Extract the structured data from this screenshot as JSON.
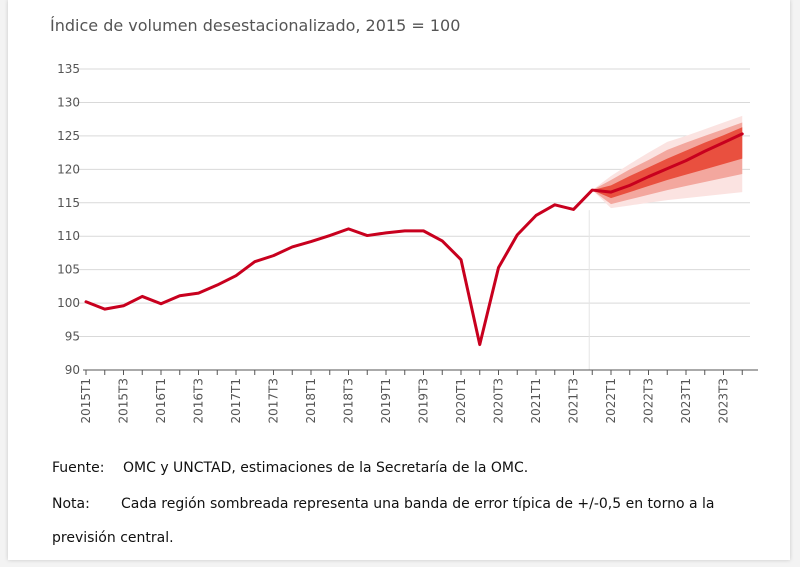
{
  "chart_data": {
    "type": "line",
    "title": "Índice de volumen desestacionalizado, 2015 = 100",
    "ylim": [
      90,
      135
    ],
    "yticks": [
      90,
      95,
      100,
      105,
      110,
      115,
      120,
      125,
      130,
      135
    ],
    "x": [
      "2015T1",
      "2015T2",
      "2015T3",
      "2015T4",
      "2016T1",
      "2016T2",
      "2016T3",
      "2016T4",
      "2017T1",
      "2017T2",
      "2017T3",
      "2017T4",
      "2018T1",
      "2018T2",
      "2018T3",
      "2018T4",
      "2019T1",
      "2019T2",
      "2019T3",
      "2019T4",
      "2020T1",
      "2020T2",
      "2020T3",
      "2020T4",
      "2021T1",
      "2021T2",
      "2021T3",
      "2021T4",
      "2022T1",
      "2022T2",
      "2022T3",
      "2022T4",
      "2023T1",
      "2023T2",
      "2023T3",
      "2023T4"
    ],
    "tick_labels": [
      "2015T1",
      "2015T3",
      "2016T1",
      "2016T3",
      "2017T1",
      "2017T3",
      "2018T1",
      "2018T3",
      "2019T1",
      "2019T3",
      "2020T1",
      "2020T3",
      "2021T1",
      "2021T3",
      "2022T1",
      "2022T3",
      "2023T1",
      "2023T3"
    ],
    "series": [
      {
        "values": [
          100.2,
          99.1,
          99.6,
          101.0,
          99.9,
          101.1,
          101.5,
          102.7,
          104.1,
          106.2,
          107.1,
          108.4,
          109.2,
          110.1,
          111.1,
          110.1,
          110.5,
          110.8,
          110.8,
          109.3,
          106.5,
          93.8,
          105.3,
          110.2,
          113.1,
          114.7,
          114.0,
          116.9,
          116.6,
          117.6,
          118.9,
          120.1,
          121.3,
          122.7,
          124.0,
          125.3
        ]
      }
    ],
    "forecast": {
      "x": [
        "2021T4",
        "2022T1",
        "2022T2",
        "2022T3",
        "2022T4",
        "2023T1",
        "2023T2",
        "2023T3",
        "2023T4"
      ],
      "bands": [
        {
          "lower": [
            116.9,
            114.2,
            114.6,
            115.0,
            115.4,
            115.7,
            116.0,
            116.3,
            116.6
          ],
          "upper": [
            116.9,
            119.0,
            120.8,
            122.5,
            124.1,
            125.0,
            126.0,
            127.0,
            128.0
          ],
          "color": "#fbe3e1"
        },
        {
          "lower": [
            116.9,
            114.8,
            115.5,
            116.2,
            116.9,
            117.5,
            118.1,
            118.7,
            119.3
          ],
          "upper": [
            116.9,
            118.4,
            120.0,
            121.4,
            122.9,
            124.0,
            125.0,
            126.0,
            127.0
          ],
          "color": "#f3a79e"
        },
        {
          "lower": [
            116.9,
            115.7,
            116.6,
            117.5,
            118.4,
            119.2,
            120.0,
            120.8,
            121.6
          ],
          "upper": [
            116.9,
            117.6,
            119.0,
            120.3,
            121.6,
            122.8,
            124.0,
            125.1,
            126.3
          ],
          "color": "#e9503f"
        }
      ]
    },
    "colors": {
      "line": "#c8001e",
      "grid": "#d9d9d9",
      "axis": "#555555"
    },
    "grid": true
  },
  "notes": {
    "source_label": "Fuente:",
    "source_text": "OMC y UNCTAD, estimaciones de la Secretaría de la OMC.",
    "note_label": "Nota:",
    "note_text_line1": "Cada región sombreada representa una banda de error típica de +/-0,5 en torno a la",
    "note_text_line2": "previsión central."
  }
}
